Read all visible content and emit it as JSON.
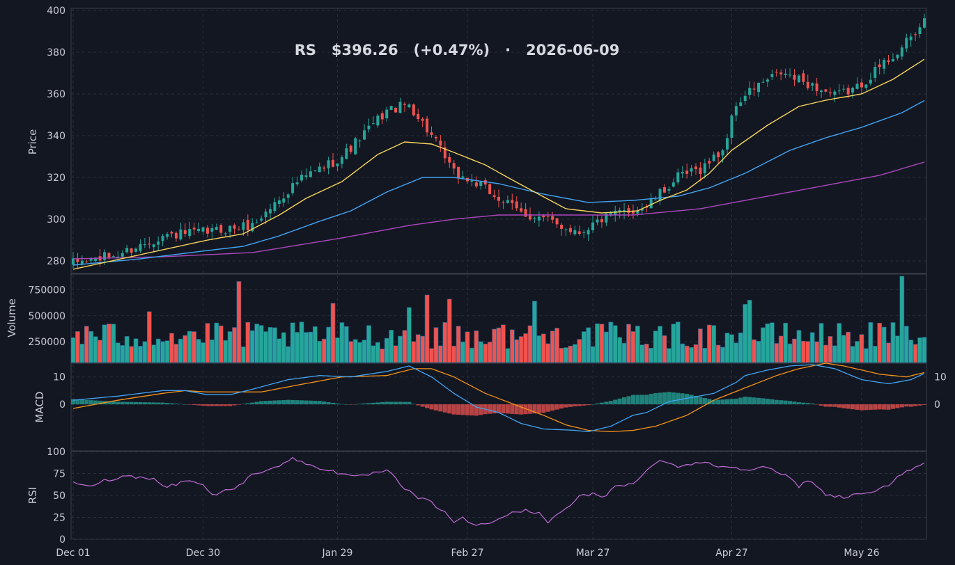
{
  "chart_data": {
    "type": "candlestick",
    "title": "RS   $396.26   (+0.47%)   ·   2026-06-09",
    "colors": {
      "background": "#131722",
      "panel_border": "#3a3f4b",
      "grid": "#2a2f3b",
      "up": "#26a69a",
      "down": "#ef5350",
      "sma20": "#f9d65c",
      "sma50": "#42a5f5",
      "sma200": "#ab47bc",
      "macd_line": "#42a5f5",
      "signal_line": "#f7931a",
      "rsi_line": "#c06bd6",
      "text": "#c9ccd3"
    },
    "x_tick_labels": [
      "Dec 01",
      "Dec 30",
      "Jan 29",
      "Feb 27",
      "Mar 27",
      "Apr 27",
      "May 26"
    ],
    "x_tick_index": [
      0,
      29,
      59,
      88,
      116,
      147,
      176
    ],
    "n_days": 191,
    "price_panel": {
      "ylabel": "Price",
      "ylim": [
        274,
        401
      ],
      "ticks": [
        280,
        300,
        320,
        340,
        360,
        380,
        400
      ],
      "control_points": [
        [
          0,
          279
        ],
        [
          10,
          283
        ],
        [
          20,
          292
        ],
        [
          30,
          294
        ],
        [
          40,
          297
        ],
        [
          50,
          318
        ],
        [
          60,
          330
        ],
        [
          70,
          352
        ],
        [
          75,
          355
        ],
        [
          80,
          340
        ],
        [
          85,
          322
        ],
        [
          90,
          317
        ],
        [
          95,
          310
        ],
        [
          100,
          303
        ],
        [
          105,
          300
        ],
        [
          110,
          296
        ],
        [
          113,
          294
        ],
        [
          118,
          300
        ],
        [
          122,
          303
        ],
        [
          128,
          306
        ],
        [
          135,
          320
        ],
        [
          140,
          324
        ],
        [
          145,
          333
        ],
        [
          148,
          355
        ],
        [
          152,
          363
        ],
        [
          158,
          370
        ],
        [
          164,
          365
        ],
        [
          170,
          359
        ],
        [
          175,
          363
        ],
        [
          180,
          373
        ],
        [
          185,
          382
        ],
        [
          191,
          396.26
        ]
      ],
      "sma20": [
        [
          0,
          276
        ],
        [
          15,
          283
        ],
        [
          30,
          290
        ],
        [
          38,
          293
        ],
        [
          46,
          302
        ],
        [
          52,
          310
        ],
        [
          60,
          318
        ],
        [
          68,
          331
        ],
        [
          74,
          337
        ],
        [
          80,
          336
        ],
        [
          85,
          332
        ],
        [
          92,
          326
        ],
        [
          97,
          320
        ],
        [
          103,
          313
        ],
        [
          110,
          305
        ],
        [
          118,
          303
        ],
        [
          126,
          304
        ],
        [
          131,
          309
        ],
        [
          137,
          314
        ],
        [
          142,
          322
        ],
        [
          147,
          333
        ],
        [
          155,
          345
        ],
        [
          162,
          354
        ],
        [
          168,
          357
        ],
        [
          176,
          360
        ],
        [
          183,
          367
        ],
        [
          191,
          378
        ]
      ],
      "sma50": [
        [
          0,
          278
        ],
        [
          15,
          281
        ],
        [
          30,
          285
        ],
        [
          38,
          287
        ],
        [
          46,
          292
        ],
        [
          55,
          299
        ],
        [
          62,
          304
        ],
        [
          70,
          313
        ],
        [
          78,
          320
        ],
        [
          85,
          320
        ],
        [
          95,
          317
        ],
        [
          105,
          312
        ],
        [
          115,
          308
        ],
        [
          125,
          309
        ],
        [
          135,
          311
        ],
        [
          142,
          315
        ],
        [
          150,
          322
        ],
        [
          160,
          333
        ],
        [
          168,
          339
        ],
        [
          176,
          344
        ],
        [
          185,
          351
        ],
        [
          191,
          358
        ]
      ],
      "sma200": [
        [
          0,
          281
        ],
        [
          20,
          282
        ],
        [
          40,
          284
        ],
        [
          60,
          291
        ],
        [
          75,
          297
        ],
        [
          85,
          300
        ],
        [
          95,
          302
        ],
        [
          110,
          302
        ],
        [
          125,
          302
        ],
        [
          140,
          305
        ],
        [
          150,
          309
        ],
        [
          160,
          313
        ],
        [
          170,
          317
        ],
        [
          180,
          321
        ],
        [
          191,
          328
        ]
      ]
    },
    "volume_panel": {
      "ylabel": "Volume",
      "ylim": [
        50000,
        900000
      ],
      "ticks": [
        250000,
        500000,
        750000
      ],
      "tick_labels": [
        "250000",
        "500000",
        "750000"
      ]
    },
    "macd_panel": {
      "ylabel": "MACD",
      "ylim": [
        -17,
        15
      ],
      "ticks_left": [
        0,
        10
      ],
      "ticks_right": [
        0,
        10
      ],
      "macd": [
        [
          0,
          1.5
        ],
        [
          10,
          3
        ],
        [
          20,
          5
        ],
        [
          25,
          5
        ],
        [
          30,
          3.5
        ],
        [
          35,
          3.5
        ],
        [
          40,
          5.5
        ],
        [
          48,
          9
        ],
        [
          55,
          10.5
        ],
        [
          62,
          10
        ],
        [
          70,
          12
        ],
        [
          75,
          14
        ],
        [
          80,
          10
        ],
        [
          85,
          4
        ],
        [
          90,
          -1
        ],
        [
          95,
          -3
        ],
        [
          100,
          -7
        ],
        [
          105,
          -9
        ],
        [
          112,
          -9.5
        ],
        [
          115,
          -10
        ],
        [
          120,
          -8
        ],
        [
          125,
          -4
        ],
        [
          128,
          -3
        ],
        [
          133,
          1
        ],
        [
          138,
          2.5
        ],
        [
          143,
          4
        ],
        [
          148,
          8
        ],
        [
          150,
          10.5
        ],
        [
          155,
          12.5
        ],
        [
          160,
          14
        ],
        [
          165,
          14.5
        ],
        [
          170,
          13
        ],
        [
          176,
          9
        ],
        [
          182,
          7.5
        ],
        [
          187,
          9
        ],
        [
          191,
          12
        ]
      ],
      "signal": [
        [
          0,
          -1.5
        ],
        [
          10,
          1.5
        ],
        [
          20,
          4
        ],
        [
          25,
          5
        ],
        [
          30,
          4.5
        ],
        [
          35,
          4.5
        ],
        [
          42,
          4.5
        ],
        [
          50,
          7
        ],
        [
          60,
          10
        ],
        [
          70,
          10.5
        ],
        [
          76,
          13
        ],
        [
          80,
          13
        ],
        [
          85,
          10
        ],
        [
          92,
          4
        ],
        [
          100,
          -1
        ],
        [
          105,
          -4
        ],
        [
          110,
          -7.5
        ],
        [
          115,
          -9.5
        ],
        [
          120,
          -10
        ],
        [
          125,
          -9.5
        ],
        [
          130,
          -8
        ],
        [
          137,
          -4
        ],
        [
          143,
          1.5
        ],
        [
          150,
          6
        ],
        [
          157,
          10.5
        ],
        [
          162,
          13
        ],
        [
          168,
          15
        ],
        [
          172,
          14
        ],
        [
          180,
          11
        ],
        [
          186,
          10
        ],
        [
          191,
          12
        ]
      ]
    },
    "rsi_panel": {
      "ylabel": "RSI",
      "ylim": [
        0,
        100
      ],
      "ticks": [
        0,
        25,
        50,
        75,
        100
      ],
      "control_points": [
        [
          0,
          64
        ],
        [
          3,
          60
        ],
        [
          8,
          68
        ],
        [
          12,
          72
        ],
        [
          18,
          70
        ],
        [
          22,
          60
        ],
        [
          27,
          68
        ],
        [
          30,
          62
        ],
        [
          32,
          50
        ],
        [
          38,
          60
        ],
        [
          42,
          75
        ],
        [
          48,
          85
        ],
        [
          51,
          92
        ],
        [
          55,
          84
        ],
        [
          60,
          78
        ],
        [
          65,
          70
        ],
        [
          70,
          76
        ],
        [
          73,
          78
        ],
        [
          76,
          60
        ],
        [
          80,
          47
        ],
        [
          83,
          42
        ],
        [
          86,
          30
        ],
        [
          88,
          20
        ],
        [
          90,
          25
        ],
        [
          92,
          16
        ],
        [
          96,
          18
        ],
        [
          100,
          27
        ],
        [
          104,
          33
        ],
        [
          108,
          30
        ],
        [
          110,
          20
        ],
        [
          113,
          30
        ],
        [
          117,
          48
        ],
        [
          120,
          52
        ],
        [
          123,
          46
        ],
        [
          125,
          62
        ],
        [
          130,
          63
        ],
        [
          134,
          85
        ],
        [
          136,
          92
        ],
        [
          140,
          82
        ],
        [
          144,
          88
        ],
        [
          148,
          85
        ],
        [
          152,
          82
        ],
        [
          156,
          80
        ],
        [
          160,
          84
        ],
        [
          162,
          78
        ],
        [
          165,
          72
        ],
        [
          168,
          60
        ],
        [
          170,
          68
        ],
        [
          174,
          52
        ],
        [
          178,
          48
        ],
        [
          182,
          52
        ],
        [
          186,
          55
        ],
        [
          189,
          62
        ],
        [
          191,
          75
        ],
        [
          194,
          77
        ],
        [
          197,
          88
        ]
      ]
    }
  }
}
